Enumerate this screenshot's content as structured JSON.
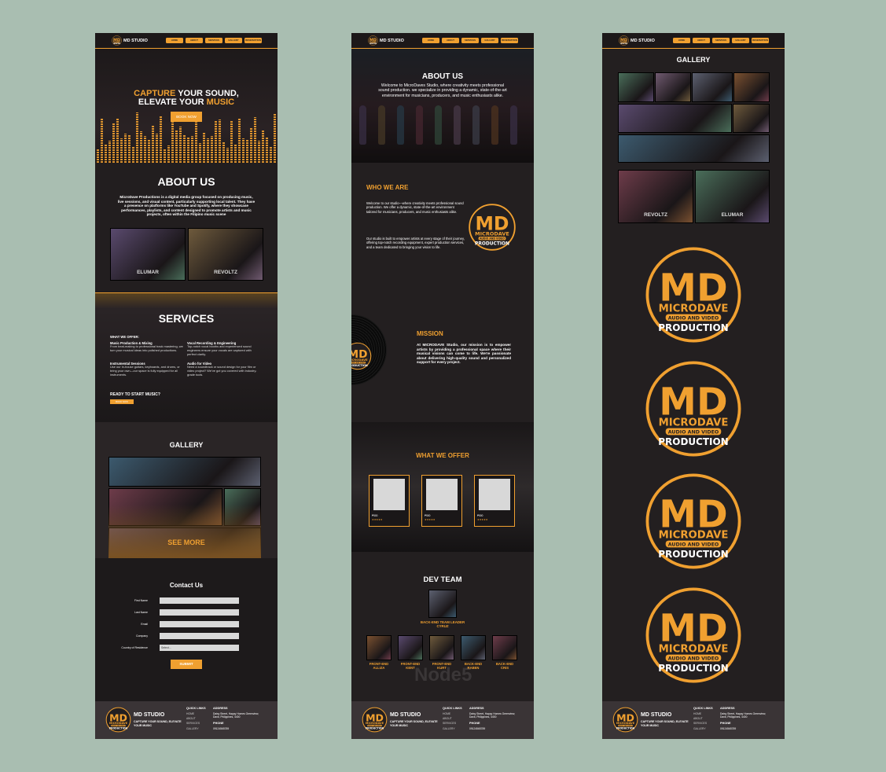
{
  "nav": {
    "brand": "MD STUDIO",
    "links": [
      "HOME",
      "ABOUT",
      "SERVICES",
      "GALLERY",
      "RESERVATION"
    ]
  },
  "logo": {
    "letters": "MD",
    "name": "MICRODAVE",
    "band": "AUDIO AND VIDEO",
    "production": "PRODUCTION"
  },
  "home": {
    "hero": {
      "accent1": "CAPTURE",
      "rest1": " YOUR SOUND,",
      "rest2": "ELEVATE YOUR ",
      "accent2": "MUSIC",
      "button": "BOOK NOW"
    },
    "about": {
      "title": "ABOUT US",
      "text": "MicroDave Productions is a digital media group focused on producing music, live sessions, and visual content, particularly supporting local talent. They have a presence on platforms like YouTube and Spotify, where they showcase performances, playlists, and content designed to promote artists and music projects, often within the Filipino music scene",
      "photos": [
        "ELUMAR",
        "REVOLTZ"
      ]
    },
    "services": {
      "title": "SERVICES",
      "subtitle": "WHAT WE OFFER:",
      "items": [
        {
          "name": "Music Production & Mixing",
          "desc": "From beat-making to professional track mastering, we turn your musical ideas into polished productions."
        },
        {
          "name": "Vocal Recording & Engineering",
          "desc": "Top-notch vocal booths and experienced sound engineers ensure your vocals are captured with perfect clarity."
        },
        {
          "name": "Instrumental Sessions",
          "desc": "Use our in-house guitars, keyboards, and drums, or bring your own—our space is fully equipped for all instruments."
        },
        {
          "name": "Audio for Video",
          "desc": "Need a soundtrack or sound design for your film or video project? We've got you covered with industry-grade tools."
        }
      ],
      "cta": "READY TO START MUSIC?",
      "button": "BOOK NOW"
    },
    "gallery": {
      "title": "GALLERY",
      "button": "SEE MORE"
    },
    "contact": {
      "title": "Contact Us",
      "fields": [
        "First Name",
        "Last Name",
        "Email",
        "Company",
        "Country of Residence"
      ],
      "select": "Select...",
      "submit": "SUBMIT"
    }
  },
  "about": {
    "hero": {
      "title": "ABOUT US",
      "text": "Welcome to MicroDaves Studio, where creativity meets professional sound production. we specialize in providing a dynamic, state-of-the-art environment for musicians, producers, and music enthusiasts alike."
    },
    "who": {
      "title": "WHO WE ARE",
      "p1": "Welcome to our studio—where creativity meets professional sound production. We offer a dynamic, state-of-the-art environment tailored for musicians, producers, and music enthusiasts alike.",
      "p2": "Our studio is built to empower artists at every stage of their journey, offering top-notch recording equipment, expert production services, and a team dedicated to bringing your vision to life."
    },
    "mission": {
      "title": "MISSION",
      "text": "At MICRODAVE Studio, our mission is to empower artists by providing a professional space where their musical visions can come to life. We're passionate about delivering high-quality sound and personalized support for every project."
    },
    "offer": {
      "title": "WHAT WE OFFER",
      "price": "₱500",
      "stars": "★★★★★"
    },
    "team": {
      "title": "DEV TEAM",
      "watermark": "Node5",
      "leader": {
        "role": "BACK-END TEAM LEADER",
        "name": "CYRUZ"
      },
      "members": [
        {
          "role": "FRONT-END",
          "name": "ALLIZA"
        },
        {
          "role": "FRONT-END",
          "name": "KENT"
        },
        {
          "role": "FRONT-END",
          "name": "KURT"
        },
        {
          "role": "BACK-END",
          "name": "RABEN"
        },
        {
          "role": "BACK-END",
          "name": "CRIS"
        }
      ]
    }
  },
  "gallery": {
    "title": "GALLERY",
    "photos": [
      "REVOLTZ",
      "ELUMAR"
    ]
  },
  "footer": {
    "brand": "MD STUDIO",
    "tagline": "CAPTURE YOUR SOUND, ELEVATE YOUR MUSIC",
    "links_title": "QUICK LINKS",
    "links": [
      "HOME",
      "ABOUT",
      "SERVICES",
      "GALLERY"
    ],
    "address_title": "ADDRESS",
    "address": "Daisy Street, Happy Homes Greenview, Davit, Philippines, 4400",
    "phone_title": "PHONE",
    "phone": "09124565789"
  }
}
